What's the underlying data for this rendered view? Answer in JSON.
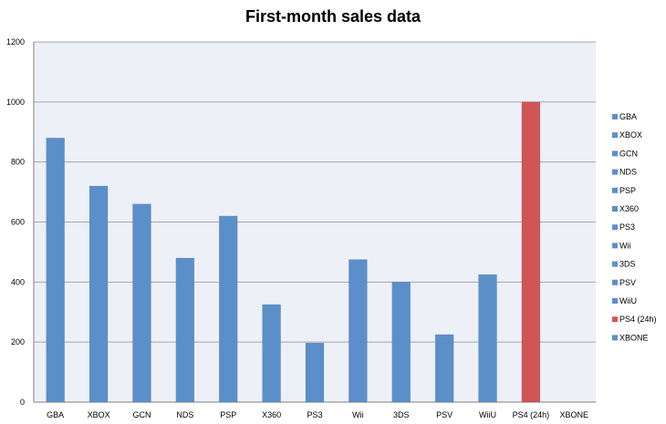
{
  "chart_data": {
    "type": "bar",
    "title": "First-month sales data",
    "xlabel": "",
    "ylabel": "",
    "ylim": [
      0,
      1200
    ],
    "yticks": [
      0,
      200,
      400,
      600,
      800,
      1000,
      1200
    ],
    "grid": true,
    "legend_position": "right",
    "categories": [
      "GBA",
      "XBOX",
      "GCN",
      "NDS",
      "PSP",
      "X360",
      "PS3",
      "Wii",
      "3DS",
      "PSV",
      "WiiU",
      "PS4 (24h)",
      "XBONE"
    ],
    "values": [
      880,
      720,
      660,
      480,
      620,
      325,
      197,
      475,
      400,
      225,
      425,
      1000,
      0
    ],
    "colors": [
      "#5b8fc9",
      "#5b8fc9",
      "#5b8fc9",
      "#5b8fc9",
      "#5b8fc9",
      "#5b8fc9",
      "#5b8fc9",
      "#5b8fc9",
      "#5b8fc9",
      "#5b8fc9",
      "#5b8fc9",
      "#d05555",
      "#5b8fc9"
    ],
    "legend": [
      "GBA",
      "XBOX",
      "GCN",
      "NDS",
      "PSP",
      "X360",
      "PS3",
      "Wii",
      "3DS",
      "PSV",
      "WiiU",
      "PS4 (24h)",
      "XBONE"
    ]
  },
  "style": {
    "plot_background": "#eef0f8",
    "grid_color": "#a6a6a6",
    "bar_color": "#5b8fc9",
    "highlight_color": "#d05555"
  }
}
